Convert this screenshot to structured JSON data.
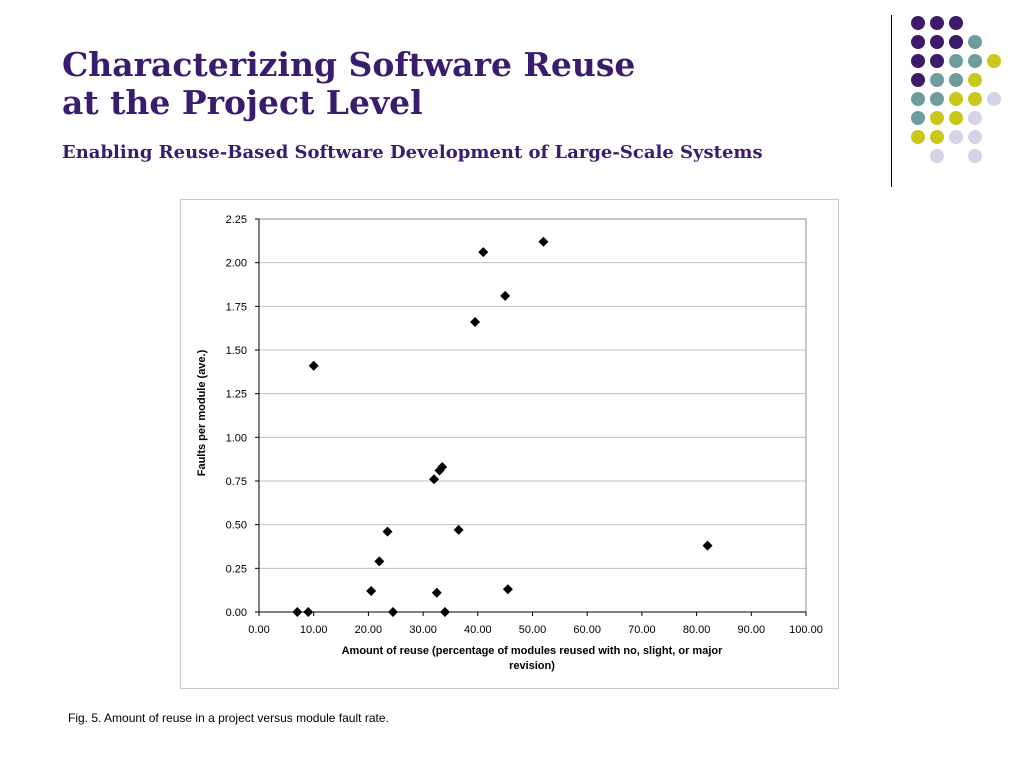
{
  "slide": {
    "title_line1": "Characterizing Software Reuse",
    "title_line2": "at the Project Level",
    "subtitle": "Enabling Reuse-Based Software Development of Large-Scale Systems",
    "caption": "Fig. 5. Amount of reuse in a project versus module fault rate."
  },
  "decor": {
    "colors": {
      "purple": "#3d1a6a",
      "teal": "#6f9c9c",
      "olive": "#c9c81a",
      "lavender": "#d5d3e6"
    },
    "dot_grid": [
      [
        "purple",
        "purple",
        "purple",
        null,
        null
      ],
      [
        "purple",
        "purple",
        "purple",
        "teal",
        null
      ],
      [
        "purple",
        "purple",
        "teal",
        "teal",
        "olive"
      ],
      [
        "purple",
        "teal",
        "teal",
        "olive",
        null
      ],
      [
        "teal",
        "teal",
        "olive",
        "olive",
        "lavender"
      ],
      [
        "teal",
        "olive",
        "olive",
        "lavender",
        null
      ],
      [
        "olive",
        "olive",
        "lavender",
        "lavender",
        null
      ],
      [
        null,
        "lavender",
        null,
        "lavender",
        null
      ]
    ]
  },
  "chart_data": {
    "type": "scatter",
    "title": "",
    "xlabel": "Amount of reuse (percentage of modules reused with no, slight, or major revision)",
    "ylabel": "Faults per module (ave.)",
    "xlim": [
      0,
      100
    ],
    "ylim": [
      0,
      2.25
    ],
    "xticks": [
      "0.00",
      "10.00",
      "20.00",
      "30.00",
      "40.00",
      "50.00",
      "60.00",
      "70.00",
      "80.00",
      "90.00",
      "100.00"
    ],
    "yticks": [
      "0.00",
      "0.25",
      "0.50",
      "0.75",
      "1.00",
      "1.25",
      "1.50",
      "1.75",
      "2.00",
      "2.25"
    ],
    "grid": "horizontal",
    "legend": "none",
    "marker": "diamond",
    "marker_color": "#000000",
    "points": [
      [
        7.0,
        0.0
      ],
      [
        9.0,
        0.0
      ],
      [
        10.0,
        1.41
      ],
      [
        20.5,
        0.12
      ],
      [
        22.0,
        0.29
      ],
      [
        23.5,
        0.46
      ],
      [
        24.5,
        0.0
      ],
      [
        32.0,
        0.76
      ],
      [
        32.5,
        0.11
      ],
      [
        33.0,
        0.81
      ],
      [
        33.5,
        0.83
      ],
      [
        34.0,
        0.0
      ],
      [
        36.5,
        0.47
      ],
      [
        39.5,
        1.66
      ],
      [
        41.0,
        2.06
      ],
      [
        45.0,
        1.81
      ],
      [
        45.5,
        0.13
      ],
      [
        52.0,
        2.12
      ],
      [
        82.0,
        0.38
      ]
    ]
  }
}
